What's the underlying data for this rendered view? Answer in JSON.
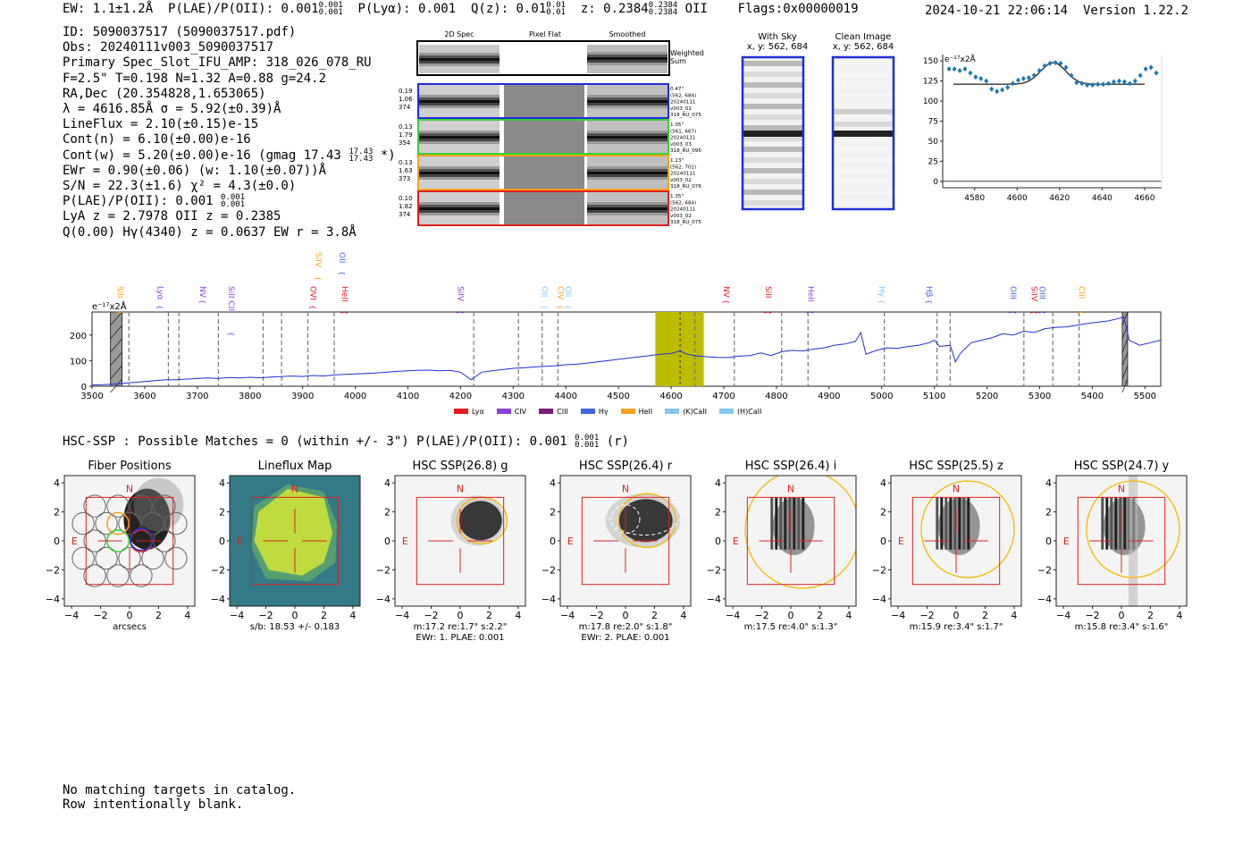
{
  "header": {
    "ew_label": "EW: 1.1±1.2Å",
    "plae_label": "P(LAE)/P(OII): 0.001",
    "plae_sup": "0.001",
    "plae_sub": "0.001",
    "plya_label": "P(Lyα): 0.001",
    "qz_label": "Q(z): 0.01",
    "qz_sup": "0.01",
    "qz_sub": "0.01",
    "z_label": "z: 0.2384",
    "z_sup": "0.2384",
    "z_sub": "0.2384",
    "z_line": "OII",
    "flags": "Flags:0x00000019",
    "timestamp": "2024-10-21 22:06:14",
    "version": "Version 1.22.2"
  },
  "info": {
    "id": "ID: 5090037517 (5090037517.pdf)",
    "obs": "Obs: 20240111v003_5090037517",
    "slot": "Primary Spec_Slot_IFU_AMP: 318_026_078_RU",
    "params": "F=2.5\"  T=0.198  N=1.32  A=0.88  g=24.2",
    "radec": "RA,Dec (20.354828,1.653065)",
    "lambda": "λ = 4616.85Å  σ = 5.92(±0.39)Å",
    "lineflux": "LineFlux = 2.10(±0.15)e-15",
    "contn": "Cont(n) = 6.10(±0.00)e-16",
    "contw_a": "Cont(w) = 5.20(±0.00)e-16 (gmag 17.43",
    "contw_sup": "17.43",
    "contw_sub": "17.43",
    "contw_b": "*)",
    "ewr": "EWr = 0.90(±0.06) (w: 1.10(±0.07))Å",
    "sn": "S/N = 22.3(±1.6)  χ² = 4.3(±0.0)",
    "plae_a": "P(LAE)/P(OII): 0.001",
    "plae_sup": "0.001",
    "plae_sub": "0.001",
    "lya": "LyA z = 2.7978   OII z = 0.2385",
    "q": "Q(0.00) Hγ(4340) z = 0.0637  EW r = 3.8Å"
  },
  "stamps": {
    "col_headers": [
      "2D Spec",
      "Pixel Flat",
      "Smoothed"
    ],
    "weighted_sum_label": "Weighted Sum",
    "rows": [
      {
        "left": [
          "0.19",
          "1.06",
          "374"
        ],
        "right": [
          "0.47\"",
          "(562, 684)",
          "20240111",
          "v003_01",
          "318_RU_075"
        ],
        "color": "#1f2fd6"
      },
      {
        "left": [
          "0.13",
          "1.79",
          "354"
        ],
        "right": [
          "1.05\"",
          "(561, 667)",
          "20240111",
          "v003_03",
          "318_RU_095"
        ],
        "color": "#3ad03a"
      },
      {
        "left": [
          "0.13",
          "1.63",
          "373"
        ],
        "right": [
          "1.23\"",
          "(562, 702)",
          "20240111",
          "v003_02",
          "318_RU_076"
        ],
        "color": "#f5a31a"
      },
      {
        "left": [
          "0.10",
          "1.82",
          "374"
        ],
        "right": [
          "1.35\"",
          "(562, 684)",
          "20240111",
          "v003_02",
          "318_RU_075"
        ],
        "color": "#e02020"
      }
    ]
  },
  "sky": {
    "with_sky_title": "With Sky",
    "with_sky_coords": "x, y: 562, 684",
    "clean_title": "Clean Image",
    "clean_coords": "x, y: 562, 684"
  },
  "colors": {
    "blue": "#1f2fd6",
    "lya": "#e8191f",
    "civ": "#8b3fe0",
    "ciii": "#7b1c80",
    "hg": "#4466dd",
    "heii": "#f5a31a",
    "kcaii": "#87c8ef",
    "hcaii": "#87c8ef",
    "highlight": "#bdbd00",
    "red": "#e02020",
    "gold": "#f5b800"
  },
  "chart_data": [
    {
      "type": "scatter",
      "title": "",
      "ylabel": "e⁻¹⁷x2Å",
      "xlim": [
        4565,
        4668
      ],
      "ylim": [
        -8,
        158
      ],
      "xticks": [
        4580,
        4600,
        4620,
        4640,
        4660
      ],
      "yticks": [
        0,
        25,
        50,
        75,
        100,
        125,
        150
      ],
      "points": {
        "x": [
          4568,
          4570.5,
          4573,
          4575.5,
          4578,
          4580.5,
          4583,
          4585.5,
          4588,
          4590.5,
          4593,
          4595.5,
          4598,
          4600.5,
          4603,
          4605.5,
          4608,
          4610.5,
          4613,
          4615.5,
          4618,
          4620.5,
          4623,
          4625.5,
          4628,
          4630.5,
          4633,
          4635.5,
          4638,
          4640.5,
          4643,
          4645.5,
          4648,
          4650.5,
          4653,
          4655.5,
          4658,
          4660.5,
          4663,
          4665.5
        ],
        "y": [
          140,
          140,
          138,
          140,
          135,
          130,
          128,
          125,
          115,
          112,
          114,
          117,
          122,
          126,
          128,
          129,
          132,
          138,
          144,
          147,
          148,
          147,
          142,
          132,
          123,
          122,
          120,
          120,
          121,
          121,
          122,
          124,
          125,
          124,
          122,
          125,
          132,
          140,
          142,
          135
        ]
      },
      "fit": {
        "baseline": 121,
        "amplitude": 27,
        "center": 4617,
        "sigma": 5.9
      }
    },
    {
      "type": "line",
      "xlim": [
        3500,
        5530
      ],
      "ylim": [
        0,
        290
      ],
      "xticks": [
        3500,
        3600,
        3700,
        3800,
        3900,
        4000,
        4100,
        4200,
        4300,
        4400,
        4500,
        4600,
        4700,
        4800,
        4900,
        5000,
        5100,
        5200,
        5300,
        5400,
        5500
      ],
      "yticks": [
        0,
        100,
        200
      ],
      "ylabel": "e⁻¹⁷x2Å",
      "highlight_range": [
        4570,
        4662
      ],
      "highlight_line": 4617,
      "masked_ranges": [
        [
          3535,
          3557
        ],
        [
          5457,
          5467
        ]
      ],
      "dashed_lines": [
        3570,
        3645,
        3665,
        3740,
        3825,
        3860,
        3910,
        3960,
        4225,
        4310,
        4355,
        4385,
        4645,
        4720,
        4810,
        4860,
        5005,
        5105,
        5130,
        5270,
        5325,
        5375
      ],
      "series_x": [
        3500,
        3520,
        3540,
        3560,
        3580,
        3600,
        3620,
        3640,
        3660,
        3680,
        3700,
        3720,
        3740,
        3760,
        3780,
        3800,
        3820,
        3840,
        3860,
        3880,
        3900,
        3920,
        3940,
        3960,
        3980,
        4000,
        4020,
        4040,
        4060,
        4080,
        4100,
        4120,
        4140,
        4160,
        4180,
        4200,
        4220,
        4230,
        4240,
        4260,
        4280,
        4300,
        4320,
        4340,
        4360,
        4380,
        4400,
        4420,
        4440,
        4460,
        4480,
        4500,
        4520,
        4540,
        4560,
        4580,
        4600,
        4617,
        4630,
        4650,
        4670,
        4690,
        4710,
        4730,
        4750,
        4770,
        4790,
        4810,
        4830,
        4850,
        4870,
        4890,
        4910,
        4930,
        4950,
        4960,
        4970,
        4990,
        5010,
        5030,
        5050,
        5070,
        5090,
        5100,
        5110,
        5130,
        5140,
        5150,
        5170,
        5190,
        5210,
        5230,
        5250,
        5270,
        5290,
        5310,
        5330,
        5350,
        5370,
        5390,
        5410,
        5430,
        5450,
        5460,
        5470,
        5490,
        5510,
        5530
      ],
      "series_y": [
        5,
        6,
        8,
        12,
        15,
        18,
        22,
        25,
        25,
        28,
        30,
        32,
        30,
        34,
        32,
        35,
        33,
        36,
        38,
        40,
        38,
        42,
        40,
        44,
        46,
        48,
        50,
        52,
        55,
        58,
        60,
        62,
        63,
        60,
        62,
        55,
        25,
        40,
        55,
        60,
        65,
        70,
        72,
        75,
        78,
        80,
        84,
        86,
        90,
        95,
        100,
        105,
        110,
        115,
        120,
        125,
        128,
        138,
        125,
        118,
        115,
        112,
        112,
        118,
        120,
        130,
        120,
        135,
        140,
        138,
        145,
        150,
        160,
        165,
        175,
        210,
        125,
        140,
        150,
        148,
        155,
        160,
        170,
        180,
        155,
        160,
        95,
        130,
        170,
        180,
        190,
        205,
        200,
        215,
        210,
        225,
        230,
        232,
        238,
        245,
        250,
        255,
        265,
        270,
        180,
        160,
        170,
        180
      ]
    }
  ],
  "emission_lines": [
    {
      "label": "SiII",
      "x": 3548,
      "color": "#f5a31a",
      "row": 1
    },
    {
      "label": "Lyα",
      "x": 3625,
      "color": "#8b3fe0",
      "row": 1
    },
    {
      "label": "NV",
      "x": 3705,
      "color": "#8b3fe0",
      "row": 1
    },
    {
      "label": "SiII CII",
      "x": 3760,
      "color": "#8b3fe0",
      "row": 1
    },
    {
      "label": "OVI",
      "x": 3915,
      "color": "#e8191f",
      "row": 1
    },
    {
      "label": "SiIV",
      "x": 3925,
      "color": "#f5a31a",
      "row": 0
    },
    {
      "label": "OII",
      "x": 3970,
      "color": "#4466dd",
      "row": 0
    },
    {
      "label": "HeII",
      "x": 3975,
      "color": "#e8191f",
      "row": 1
    },
    {
      "label": "SiIV",
      "x": 4195,
      "color": "#8b3fe0",
      "row": 1
    },
    {
      "label": "OII",
      "x": 4355,
      "color": "#87c8ef",
      "row": 1
    },
    {
      "label": "CIV",
      "x": 4385,
      "color": "#f5a31a",
      "row": 1
    },
    {
      "label": "OII",
      "x": 4400,
      "color": "#87c8ef",
      "row": 1
    },
    {
      "label": "NV",
      "x": 4700,
      "color": "#e8191f",
      "row": 1
    },
    {
      "label": "SiII",
      "x": 4780,
      "color": "#e8191f",
      "row": 1
    },
    {
      "label": "HeII",
      "x": 4860,
      "color": "#8b3fe0",
      "row": 1
    },
    {
      "label": "Hγ",
      "x": 4995,
      "color": "#87c8ef",
      "row": 1
    },
    {
      "label": "Hβ",
      "x": 5085,
      "color": "#4466dd",
      "row": 1
    },
    {
      "label": "OIII",
      "x": 5245,
      "color": "#4466dd",
      "row": 1
    },
    {
      "label": "SiIV",
      "x": 5285,
      "color": "#e8191f",
      "row": 1
    },
    {
      "label": "OIII",
      "x": 5300,
      "color": "#4466dd",
      "row": 1
    },
    {
      "label": "CIII",
      "x": 5375,
      "color": "#f5a31a",
      "row": 1
    }
  ],
  "legend": [
    {
      "label": "Lyα",
      "color": "#e8191f"
    },
    {
      "label": "CIV",
      "color": "#8b3fe0"
    },
    {
      "label": "CIII",
      "color": "#7b1c80"
    },
    {
      "label": "Hγ",
      "color": "#4466dd"
    },
    {
      "label": "HeII",
      "color": "#f5a31a"
    },
    {
      "label": "(K)CaII",
      "color": "#87c8ef"
    },
    {
      "label": "(H)CaII",
      "color": "#87c8ef"
    }
  ],
  "hsc_line": {
    "text_a": "HSC-SSP : Possible Matches = 0 (within +/- 3\")  P(LAE)/P(OII): 0.001",
    "sup": "0.001",
    "sub": "0.001",
    "text_b": "(r)"
  },
  "cutouts": [
    {
      "title": "Fiber Positions",
      "caption1": "arcsecs",
      "caption2": ""
    },
    {
      "title": "Lineflux Map",
      "caption1": "s/b: 18.53 +/- 0.183",
      "caption2": ""
    },
    {
      "title": "HSC SSP(26.8) g",
      "caption1": "m:17.2  re:1.7\"  s:2.2\"",
      "caption2": "EWr: 1. PLAE: 0.001"
    },
    {
      "title": "HSC SSP(26.4) r",
      "caption1": "m:17.8  re:2.0\"  s:1.8\"",
      "caption2": "EWr: 2. PLAE: 0.001"
    },
    {
      "title": "HSC SSP(26.4) i",
      "caption1": "m:17.5  re:4.0\"  s:1.3\"",
      "caption2": ""
    },
    {
      "title": "HSC SSP(25.5) z",
      "caption1": "m:15.9  re:3.4\"  s:1.7\"",
      "caption2": ""
    },
    {
      "title": "HSC SSP(24.7) y",
      "caption1": "m:15.8  re:3.4\"  s:1.6\"",
      "caption2": ""
    }
  ],
  "cutout_axis": {
    "ticks": [
      "−4",
      "−2",
      "0",
      "2",
      "4"
    ],
    "n_label": "N",
    "e_label": "E"
  },
  "footer": {
    "line1": "No matching targets in catalog.",
    "line2": "Row intentionally blank."
  }
}
